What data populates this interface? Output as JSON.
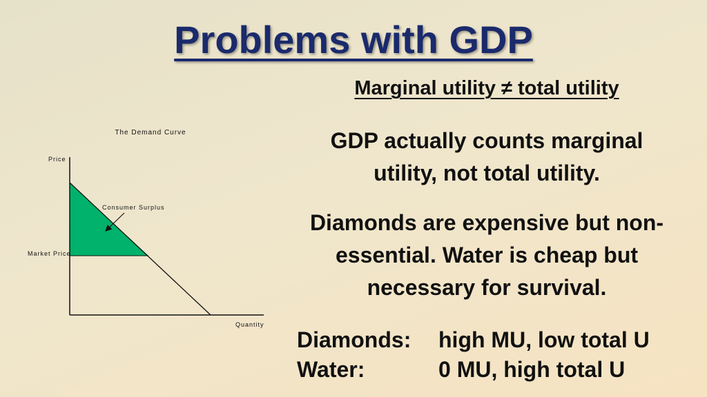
{
  "title": "Problems with GDP",
  "subheading": "Marginal utility ≠ total utility",
  "paragraphs": [
    "GDP actually counts marginal utility, not total utility.",
    "Diamonds are expensive but non-essential.  Water is cheap but necessary for survival."
  ],
  "comparison": [
    {
      "label": "Diamonds:",
      "value": "high MU, low total U"
    },
    {
      "label": "Water:",
      "value": "0 MU, high total U"
    }
  ],
  "diagram": {
    "title": "The Demand Curve",
    "y_axis_label": "Price",
    "x_axis_label": "Quantity",
    "market_price_label": "Market Price",
    "surplus_label": "Consumer Surplus",
    "surplus_color": "#00b26b"
  }
}
